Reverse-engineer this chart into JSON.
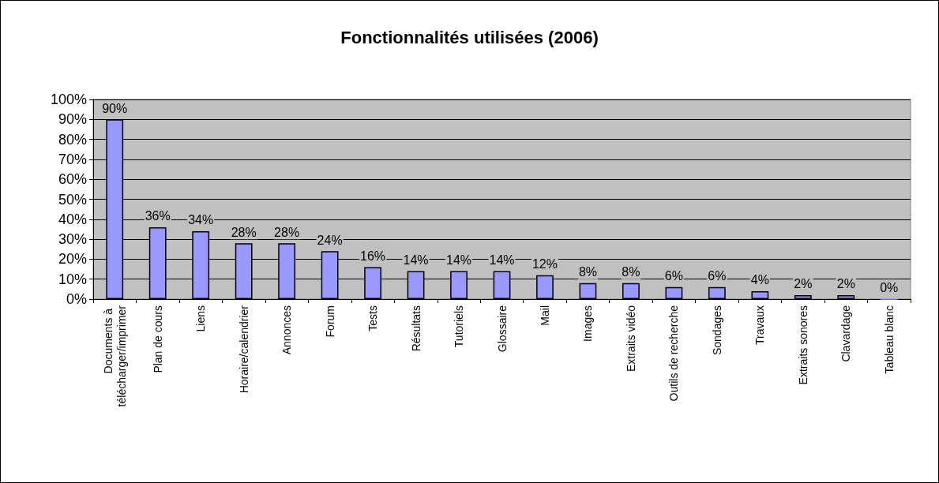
{
  "chart_data": {
    "type": "bar",
    "title": "Fonctionnalités utilisées (2006)",
    "categories": [
      "Documents à télécharger/imprimer",
      "Plan de cours",
      "Liens",
      "Horaire/calendrier",
      "Annonces",
      "Forum",
      "Tests",
      "Résultats",
      "Tutoriels",
      "Glossaire",
      "Mail",
      "Images",
      "Extraits vidéo",
      "Outils de recherche",
      "Sondages",
      "Travaux",
      "Extraits sonores",
      "Clavardage",
      "Tableau blanc"
    ],
    "values": [
      90,
      36,
      34,
      28,
      28,
      24,
      16,
      14,
      14,
      14,
      12,
      8,
      8,
      6,
      6,
      4,
      2,
      2,
      0
    ],
    "value_labels": [
      "90%",
      "36%",
      "34%",
      "28%",
      "28%",
      "24%",
      "16%",
      "14%",
      "14%",
      "14%",
      "12%",
      "8%",
      "8%",
      "6%",
      "6%",
      "4%",
      "2%",
      "2%",
      "0%"
    ],
    "color": "#9999ff",
    "ylim": [
      0,
      100
    ],
    "yticks": [
      {
        "value": 0,
        "label": "0%"
      },
      {
        "value": 10,
        "label": "10%"
      },
      {
        "value": 20,
        "label": "20%"
      },
      {
        "value": 30,
        "label": "30%"
      },
      {
        "value": 40,
        "label": "40%"
      },
      {
        "value": 50,
        "label": "50%"
      },
      {
        "value": 60,
        "label": "60%"
      },
      {
        "value": 70,
        "label": "70%"
      },
      {
        "value": 80,
        "label": "80%"
      },
      {
        "value": 90,
        "label": "90%"
      },
      {
        "value": 100,
        "label": "100%"
      }
    ],
    "grid": "y"
  }
}
